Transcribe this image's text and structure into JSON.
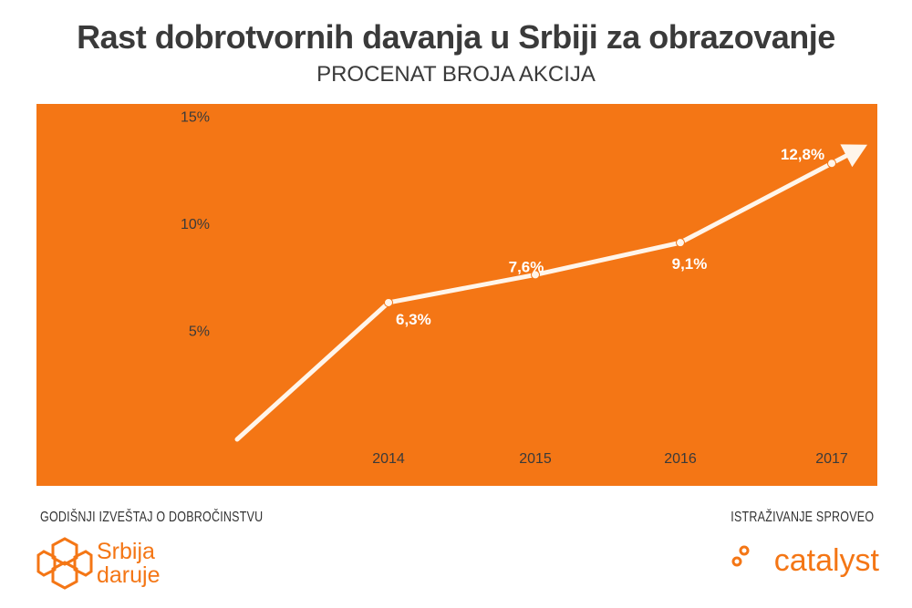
{
  "header": {
    "title": "Rast dobrotvornih davanja u Srbiji za obrazovanje",
    "subtitle": "PROCENAT BROJA AKCIJA"
  },
  "footer": {
    "left_caption": "GODIŠNJI IZVEŠTAJ O DOBROČINSTVU",
    "right_caption": "ISTRAŽIVANJE SPROVEO",
    "left_logo_line1": "Srbija",
    "left_logo_line2": "daruje",
    "right_logo_text": "catalyst"
  },
  "colors": {
    "background": "#f47615",
    "line": "#fff5ea",
    "text": "#3a3a3a",
    "accent": "#f47615"
  },
  "icons": [
    "srbija-daruje-logo-icon",
    "catalyst-logo-icon",
    "arrow-head-icon"
  ],
  "chart_data": {
    "type": "line",
    "title": "Rast dobrotvornih davanja u Srbiji za obrazovanje",
    "subtitle": "PROCENAT BROJA AKCIJA",
    "xlabel": "",
    "ylabel": "",
    "categories": [
      "2014",
      "2015",
      "2016",
      "2017"
    ],
    "series": [
      {
        "values": [
          6.3,
          7.6,
          9.1,
          12.8
        ],
        "labels": [
          "6,3%",
          "7,6%",
          "9,1%",
          "12,8%"
        ]
      }
    ],
    "yticks": [
      5,
      10,
      15
    ],
    "ytick_labels": [
      "5%",
      "10%",
      "15%"
    ],
    "ylim": [
      0,
      15
    ],
    "grid": false,
    "legend": "none",
    "line_has_arrow": true
  }
}
